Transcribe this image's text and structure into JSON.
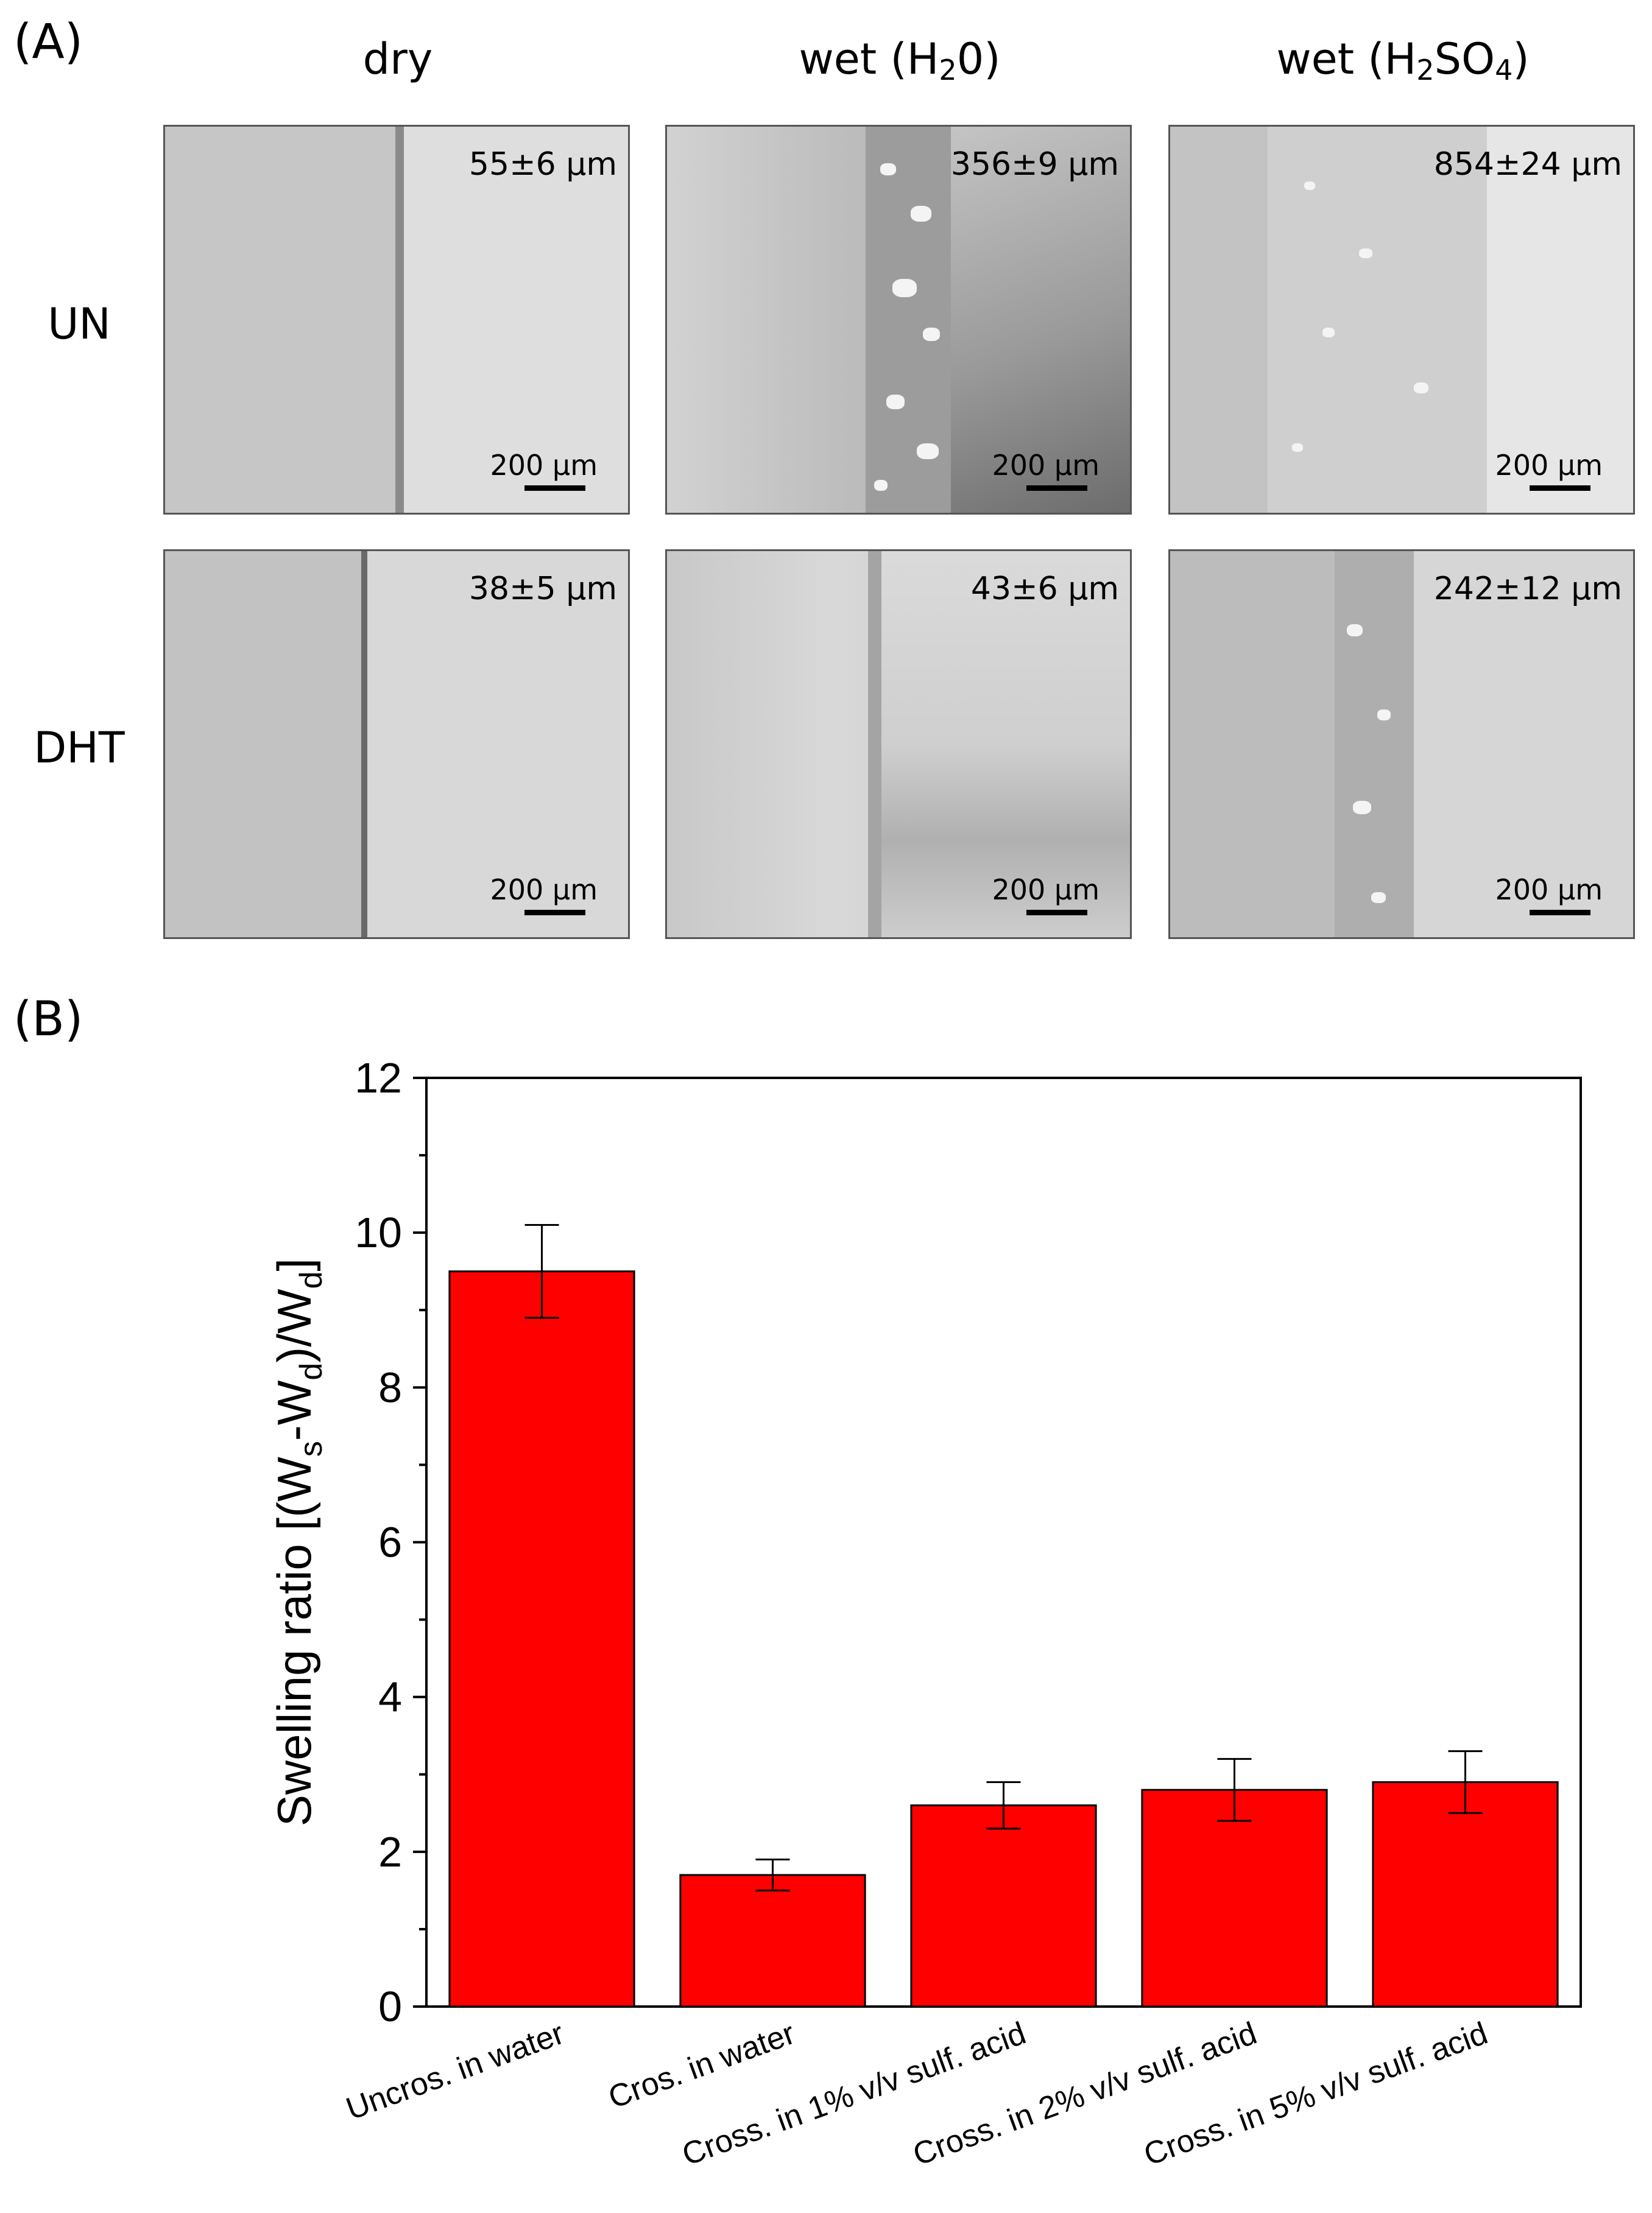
{
  "panel_a": {
    "label": "(A)",
    "columns": [
      {
        "text": "dry",
        "sub": "",
        "text2": "",
        "sub2": "",
        "text3": ""
      },
      {
        "text": "wet (H",
        "sub": "2",
        "text2": "0)",
        "sub2": "",
        "text3": ""
      },
      {
        "text": "wet (H",
        "sub": "2",
        "text2": "SO",
        "sub2": "4",
        "text3": ")"
      }
    ],
    "rows": [
      "UN",
      "DHT"
    ],
    "images": [
      {
        "thickness": "55±6 µm",
        "scale": "200 µm"
      },
      {
        "thickness": "356±9 µm",
        "scale": "200 µm"
      },
      {
        "thickness": "854±24 µm",
        "scale": "200 µm"
      },
      {
        "thickness": "38±5 µm",
        "scale": "200 µm"
      },
      {
        "thickness": "43±6 µm",
        "scale": "200 µm"
      },
      {
        "thickness": "242±12 µm",
        "scale": "200 µm"
      }
    ]
  },
  "panel_b": {
    "label": "(B)"
  },
  "chart_data": {
    "type": "bar",
    "categories": [
      "Uncros. in water",
      "Cros. in water",
      "Cross. in 1% v/v sulf. acid",
      "Cross. in 2% v/v sulf. acid",
      "Cross. in 5% v/v sulf. acid"
    ],
    "values": [
      9.5,
      1.7,
      2.6,
      2.8,
      2.9
    ],
    "errors": [
      0.6,
      0.2,
      0.3,
      0.4,
      0.4
    ],
    "ylabel": "Swelling ratio [(Ws-Wd)/Wd]",
    "xlabel": "",
    "ylim": [
      0,
      12
    ],
    "yticks": [
      0,
      2,
      4,
      6,
      8,
      10,
      12
    ],
    "bar_color": "#ff0000",
    "grid": false
  }
}
